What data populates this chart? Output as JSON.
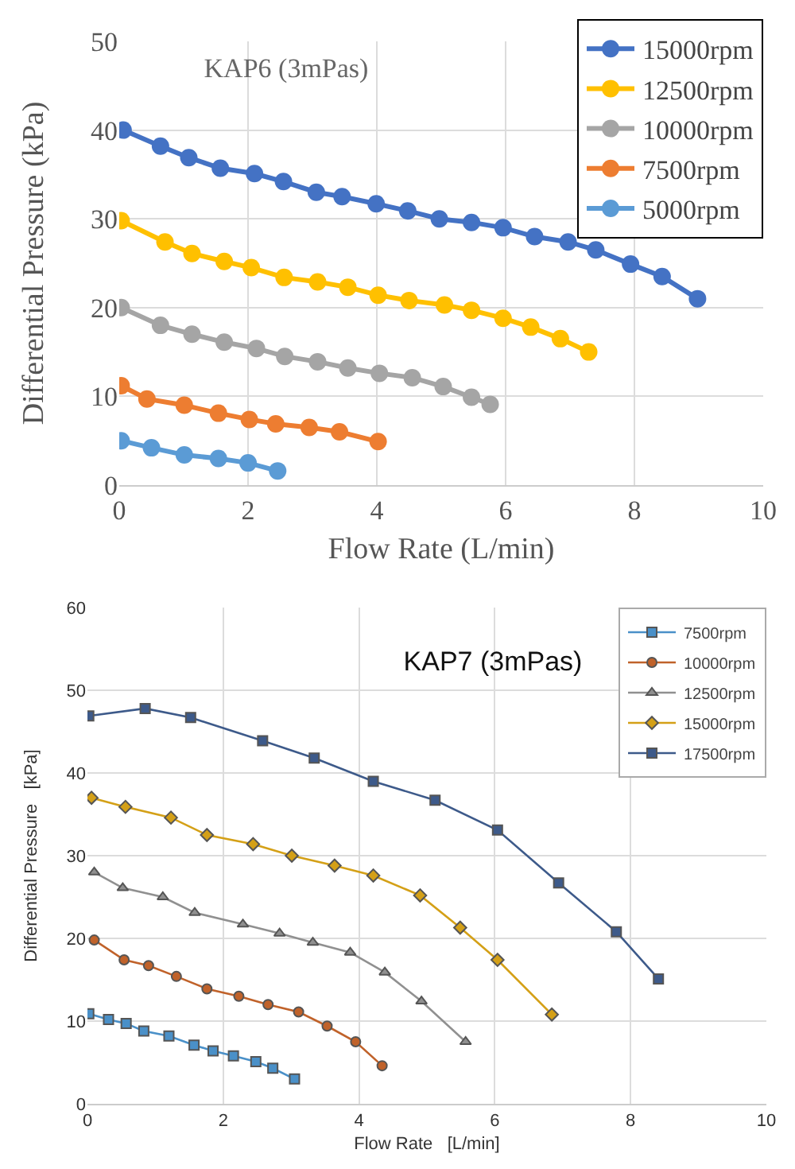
{
  "chart_data": [
    {
      "type": "line",
      "title": "KAP6 (3mPas)",
      "xlabel": "Flow Rate (L/min)",
      "ylabel": "Differential Pressure (kPa)",
      "xlim": [
        0,
        10
      ],
      "xticks": [
        0,
        2,
        4,
        6,
        8,
        10
      ],
      "ylim": [
        0,
        50
      ],
      "yticks": [
        0,
        10,
        20,
        30,
        40,
        50
      ],
      "grid": true,
      "legend": "top right",
      "marker": "circle",
      "line_style": "solid",
      "series": [
        {
          "name": "15000rpm",
          "color": "#4472c4",
          "x": [
            0.06,
            0.64,
            1.08,
            1.57,
            2.1,
            2.55,
            3.06,
            3.46,
            3.99,
            4.48,
            4.97,
            5.47,
            5.96,
            6.45,
            6.97,
            7.4,
            7.94,
            8.43,
            8.98
          ],
          "values": [
            40.0,
            38.2,
            36.9,
            35.7,
            35.1,
            34.2,
            33.0,
            32.5,
            31.7,
            30.9,
            30.0,
            29.6,
            29.0,
            28.0,
            27.4,
            26.5,
            24.9,
            23.5,
            21.0
          ]
        },
        {
          "name": "12500rpm",
          "color": "#ffc000",
          "x": [
            0.03,
            0.71,
            1.13,
            1.63,
            2.05,
            2.56,
            3.08,
            3.55,
            4.02,
            4.5,
            5.05,
            5.47,
            5.96,
            6.39,
            6.85,
            7.29
          ],
          "values": [
            29.8,
            27.4,
            26.1,
            25.2,
            24.5,
            23.4,
            22.9,
            22.3,
            21.4,
            20.8,
            20.3,
            19.7,
            18.8,
            17.8,
            16.5,
            15.0
          ]
        },
        {
          "name": "10000rpm",
          "color": "#a5a5a5",
          "x": [
            0.03,
            0.64,
            1.13,
            1.63,
            2.13,
            2.57,
            3.08,
            3.55,
            4.04,
            4.55,
            5.03,
            5.47,
            5.76
          ],
          "values": [
            20.0,
            18.0,
            17.0,
            16.1,
            15.4,
            14.5,
            13.9,
            13.2,
            12.6,
            12.1,
            11.1,
            9.9,
            9.1
          ]
        },
        {
          "name": "7500rpm",
          "color": "#ed7d31",
          "x": [
            0.03,
            0.43,
            1.01,
            1.54,
            2.02,
            2.43,
            2.95,
            3.42,
            4.02
          ],
          "values": [
            11.2,
            9.7,
            9.0,
            8.1,
            7.4,
            6.9,
            6.5,
            6.0,
            4.9
          ]
        },
        {
          "name": "5000rpm",
          "color": "#5b9bd5",
          "x": [
            0.03,
            0.5,
            1.01,
            1.54,
            2.0,
            2.46
          ],
          "values": [
            5.0,
            4.2,
            3.4,
            3.0,
            2.5,
            1.6
          ]
        }
      ]
    },
    {
      "type": "line",
      "title": "KAP7 (3mPas)",
      "xlabel": "Flow Rate   [L/min]",
      "ylabel": "Differential Pressure   [kPa]",
      "xlim": [
        0,
        10
      ],
      "xticks": [
        0,
        2,
        4,
        6,
        8,
        10
      ],
      "ylim": [
        0,
        60
      ],
      "yticks": [
        0,
        10,
        20,
        30,
        40,
        50,
        60
      ],
      "grid": true,
      "legend": "top right",
      "line_style": "solid",
      "series": [
        {
          "name": "7500rpm",
          "color": "#4a90c8",
          "marker": "square",
          "x": [
            0.02,
            0.31,
            0.57,
            0.83,
            1.2,
            1.57,
            1.85,
            2.15,
            2.48,
            2.73,
            3.05
          ],
          "values": [
            10.9,
            10.2,
            9.7,
            8.8,
            8.2,
            7.1,
            6.4,
            5.8,
            5.1,
            4.3,
            3.0
          ]
        },
        {
          "name": "10000rpm",
          "color": "#c0622a",
          "marker": "circle",
          "x": [
            0.1,
            0.54,
            0.9,
            1.31,
            1.76,
            2.23,
            2.66,
            3.11,
            3.53,
            3.95,
            4.34
          ],
          "values": [
            19.8,
            17.4,
            16.7,
            15.4,
            13.9,
            13.0,
            12.0,
            11.1,
            9.4,
            7.5,
            4.6
          ]
        },
        {
          "name": "12500rpm",
          "color": "#909090",
          "marker": "triangle",
          "x": [
            0.1,
            0.52,
            1.11,
            1.58,
            2.29,
            2.83,
            3.32,
            3.87,
            4.38,
            4.92,
            5.57
          ],
          "values": [
            28.0,
            26.1,
            25.0,
            23.1,
            21.7,
            20.6,
            19.5,
            18.3,
            15.9,
            12.4,
            7.5
          ]
        },
        {
          "name": "15000rpm",
          "color": "#d4a017",
          "marker": "diamond",
          "x": [
            0.06,
            0.56,
            1.23,
            1.76,
            2.44,
            3.01,
            3.64,
            4.21,
            4.9,
            5.49,
            6.04,
            6.84
          ],
          "values": [
            37.0,
            35.9,
            34.6,
            32.5,
            31.4,
            30.0,
            28.8,
            27.6,
            25.2,
            21.3,
            17.4,
            10.8
          ]
        },
        {
          "name": "17500rpm",
          "color": "#3d5a8a",
          "marker": "square",
          "x": [
            0.02,
            0.85,
            1.52,
            2.58,
            3.34,
            4.21,
            5.12,
            6.04,
            6.94,
            7.79,
            8.41
          ],
          "values": [
            46.9,
            47.8,
            46.7,
            43.9,
            41.8,
            39.0,
            36.7,
            33.1,
            26.7,
            20.8,
            15.1
          ]
        }
      ]
    }
  ]
}
